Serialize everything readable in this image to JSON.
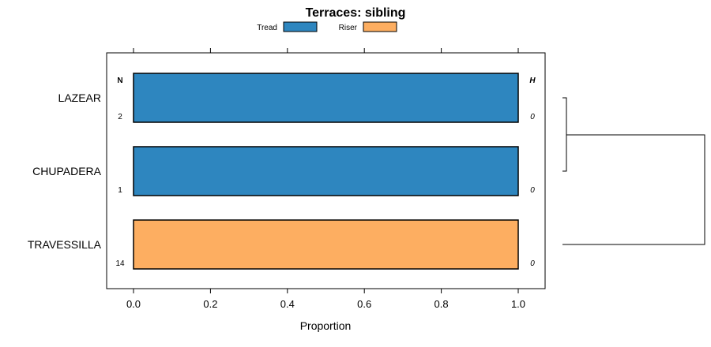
{
  "chart_data": {
    "type": "bar",
    "orientation": "horizontal",
    "stacked": true,
    "title": "Terraces: sibling",
    "xlabel": "Proportion",
    "ylabel": "",
    "xlim": [
      -0.07,
      1.07
    ],
    "x_ticks": [
      0.0,
      0.2,
      0.4,
      0.6,
      0.8,
      1.0
    ],
    "x_tick_labels": [
      "0.0",
      "0.2",
      "0.4",
      "0.6",
      "0.8",
      "1.0"
    ],
    "categories": [
      "LAZEAR",
      "CHUPADERA",
      "TRAVESSILLA"
    ],
    "series": [
      {
        "name": "Tread",
        "color": "#2e86bf",
        "values": [
          1.0,
          1.0,
          0.0
        ]
      },
      {
        "name": "Riser",
        "color": "#fdae61",
        "values": [
          0.0,
          0.0,
          1.0
        ]
      }
    ],
    "left_annotation": {
      "header": "N",
      "values": [
        "2",
        "1",
        "14"
      ]
    },
    "right_annotation": {
      "header": "H",
      "values": [
        "0",
        "0",
        "0"
      ]
    },
    "legend_position": "top",
    "dendrogram": "right"
  }
}
